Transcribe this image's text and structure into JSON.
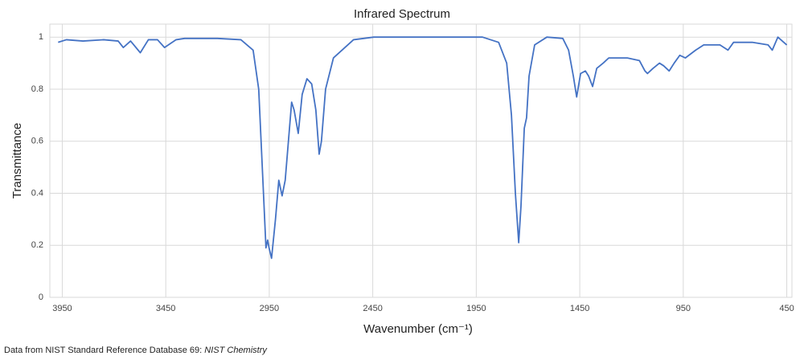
{
  "chart_data": {
    "type": "line",
    "title": "Infrared Spectrum",
    "x_label": "Wavenumber (cm⁻¹)",
    "y_label": "Transmittance",
    "source": "Data from NIST Standard Reference Database 69: ",
    "source_italic": "NIST Chemistry",
    "color": "#4472c4",
    "grid": true,
    "xlim": [
      4010,
      425
    ],
    "xticks": [
      3950,
      3450,
      2950,
      2450,
      1950,
      1450,
      950,
      450
    ],
    "ylim": [
      0,
      1.05
    ],
    "yticks": [
      0,
      0.2,
      0.4,
      0.6,
      0.8,
      1
    ],
    "x": [
      3970,
      3930,
      3850,
      3750,
      3680,
      3655,
      3620,
      3573,
      3534,
      3490,
      3456,
      3400,
      3359,
      3200,
      3087,
      3028,
      3001,
      2978,
      2966,
      2958,
      2951,
      2939,
      2920,
      2904,
      2888,
      2873,
      2842,
      2830,
      2810,
      2791,
      2768,
      2745,
      2725,
      2709,
      2698,
      2678,
      2640,
      2543,
      2445,
      2200,
      1920,
      1842,
      1803,
      1780,
      1761,
      1745,
      1734,
      1718,
      1707,
      1695,
      1668,
      1609,
      1532,
      1504,
      1481,
      1465,
      1446,
      1423,
      1407,
      1388,
      1368,
      1337,
      1310,
      1220,
      1162,
      1135,
      1123,
      1096,
      1065,
      1045,
      1018,
      994,
      967,
      940,
      890,
      851,
      773,
      734,
      707,
      617,
      540,
      520,
      493,
      450
    ],
    "values": [
      0.98,
      0.99,
      0.985,
      0.99,
      0.985,
      0.96,
      0.985,
      0.94,
      0.99,
      0.99,
      0.96,
      0.99,
      0.995,
      0.995,
      0.99,
      0.95,
      0.8,
      0.4,
      0.19,
      0.22,
      0.19,
      0.15,
      0.3,
      0.45,
      0.39,
      0.45,
      0.75,
      0.72,
      0.63,
      0.78,
      0.84,
      0.82,
      0.72,
      0.55,
      0.6,
      0.8,
      0.92,
      0.99,
      1.0,
      1.0,
      1.0,
      0.98,
      0.9,
      0.7,
      0.4,
      0.21,
      0.35,
      0.65,
      0.69,
      0.85,
      0.97,
      1.0,
      0.995,
      0.95,
      0.85,
      0.77,
      0.86,
      0.87,
      0.85,
      0.81,
      0.88,
      0.9,
      0.92,
      0.92,
      0.91,
      0.87,
      0.86,
      0.88,
      0.9,
      0.89,
      0.87,
      0.9,
      0.93,
      0.92,
      0.95,
      0.97,
      0.97,
      0.95,
      0.98,
      0.98,
      0.97,
      0.95,
      1.0,
      0.97
    ]
  }
}
